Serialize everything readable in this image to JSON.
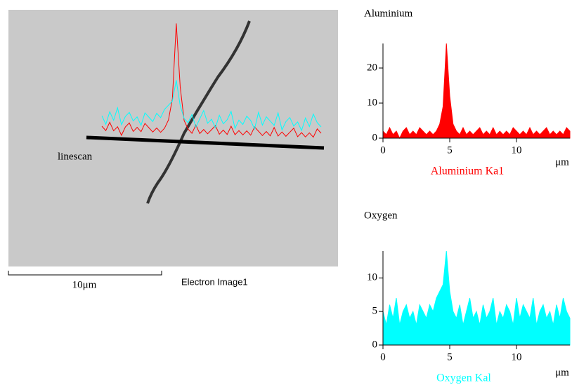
{
  "image": {
    "overlay_label": "linescan",
    "scale_bar": "10μm",
    "caption": "Electron Image1"
  },
  "chart_data": [
    {
      "type": "area",
      "title": "Aluminium",
      "xlabel": "Aluminium Ka1",
      "unit": "μm",
      "color": "#ff0000",
      "x": [
        0,
        0.25,
        0.5,
        0.75,
        1,
        1.25,
        1.5,
        1.75,
        2,
        2.25,
        2.5,
        2.75,
        3,
        3.25,
        3.5,
        3.75,
        4,
        4.25,
        4.5,
        4.75,
        5,
        5.25,
        5.5,
        5.75,
        6,
        6.25,
        6.5,
        6.75,
        7,
        7.25,
        7.5,
        7.75,
        8,
        8.25,
        8.5,
        8.75,
        9,
        9.25,
        9.5,
        9.75,
        10,
        10.25,
        10.5,
        10.75,
        11,
        11.25,
        11.5,
        11.75,
        12,
        12.25,
        12.5,
        12.75,
        13,
        13.25,
        13.5,
        13.75,
        14
      ],
      "values": [
        2,
        1,
        3,
        1,
        2,
        0,
        2,
        3,
        1,
        2,
        1,
        3,
        2,
        1,
        2,
        1,
        2,
        4,
        9,
        27,
        12,
        4,
        2,
        1,
        3,
        1,
        2,
        1,
        2,
        3,
        1,
        2,
        1,
        3,
        1,
        2,
        1,
        2,
        1,
        3,
        2,
        1,
        2,
        1,
        3,
        1,
        2,
        1,
        2,
        3,
        1,
        2,
        1,
        2,
        1,
        3,
        2
      ],
      "xlim": [
        0,
        14
      ],
      "ylim": [
        0,
        27
      ],
      "xticks": [
        0,
        5,
        10
      ],
      "yticks": [
        0,
        10,
        20
      ]
    },
    {
      "type": "area",
      "title": "Oxygen",
      "xlabel": "Oxygen Kal",
      "unit": "μm",
      "color": "#00ffff",
      "x": [
        0,
        0.25,
        0.5,
        0.75,
        1,
        1.25,
        1.5,
        1.75,
        2,
        2.25,
        2.5,
        2.75,
        3,
        3.25,
        3.5,
        3.75,
        4,
        4.25,
        4.5,
        4.75,
        5,
        5.25,
        5.5,
        5.75,
        6,
        6.25,
        6.5,
        6.75,
        7,
        7.25,
        7.5,
        7.75,
        8,
        8.25,
        8.5,
        8.75,
        9,
        9.25,
        9.5,
        9.75,
        10,
        10.25,
        10.5,
        10.75,
        11,
        11.25,
        11.5,
        11.75,
        12,
        12.25,
        12.5,
        12.75,
        13,
        13.25,
        13.5,
        13.75,
        14
      ],
      "values": [
        5,
        3,
        6,
        4,
        7,
        3,
        5,
        6,
        4,
        5,
        3,
        6,
        5,
        4,
        6,
        5,
        7,
        8,
        9,
        14,
        8,
        5,
        4,
        6,
        3,
        5,
        7,
        4,
        5,
        3,
        6,
        4,
        5,
        7,
        3,
        5,
        4,
        6,
        5,
        3,
        7,
        4,
        6,
        5,
        4,
        7,
        3,
        5,
        6,
        4,
        5,
        3,
        6,
        4,
        7,
        5,
        4
      ],
      "xlim": [
        0,
        14
      ],
      "ylim": [
        0,
        14
      ],
      "xticks": [
        0,
        5,
        10
      ],
      "yticks": [
        0,
        5,
        10
      ]
    }
  ]
}
